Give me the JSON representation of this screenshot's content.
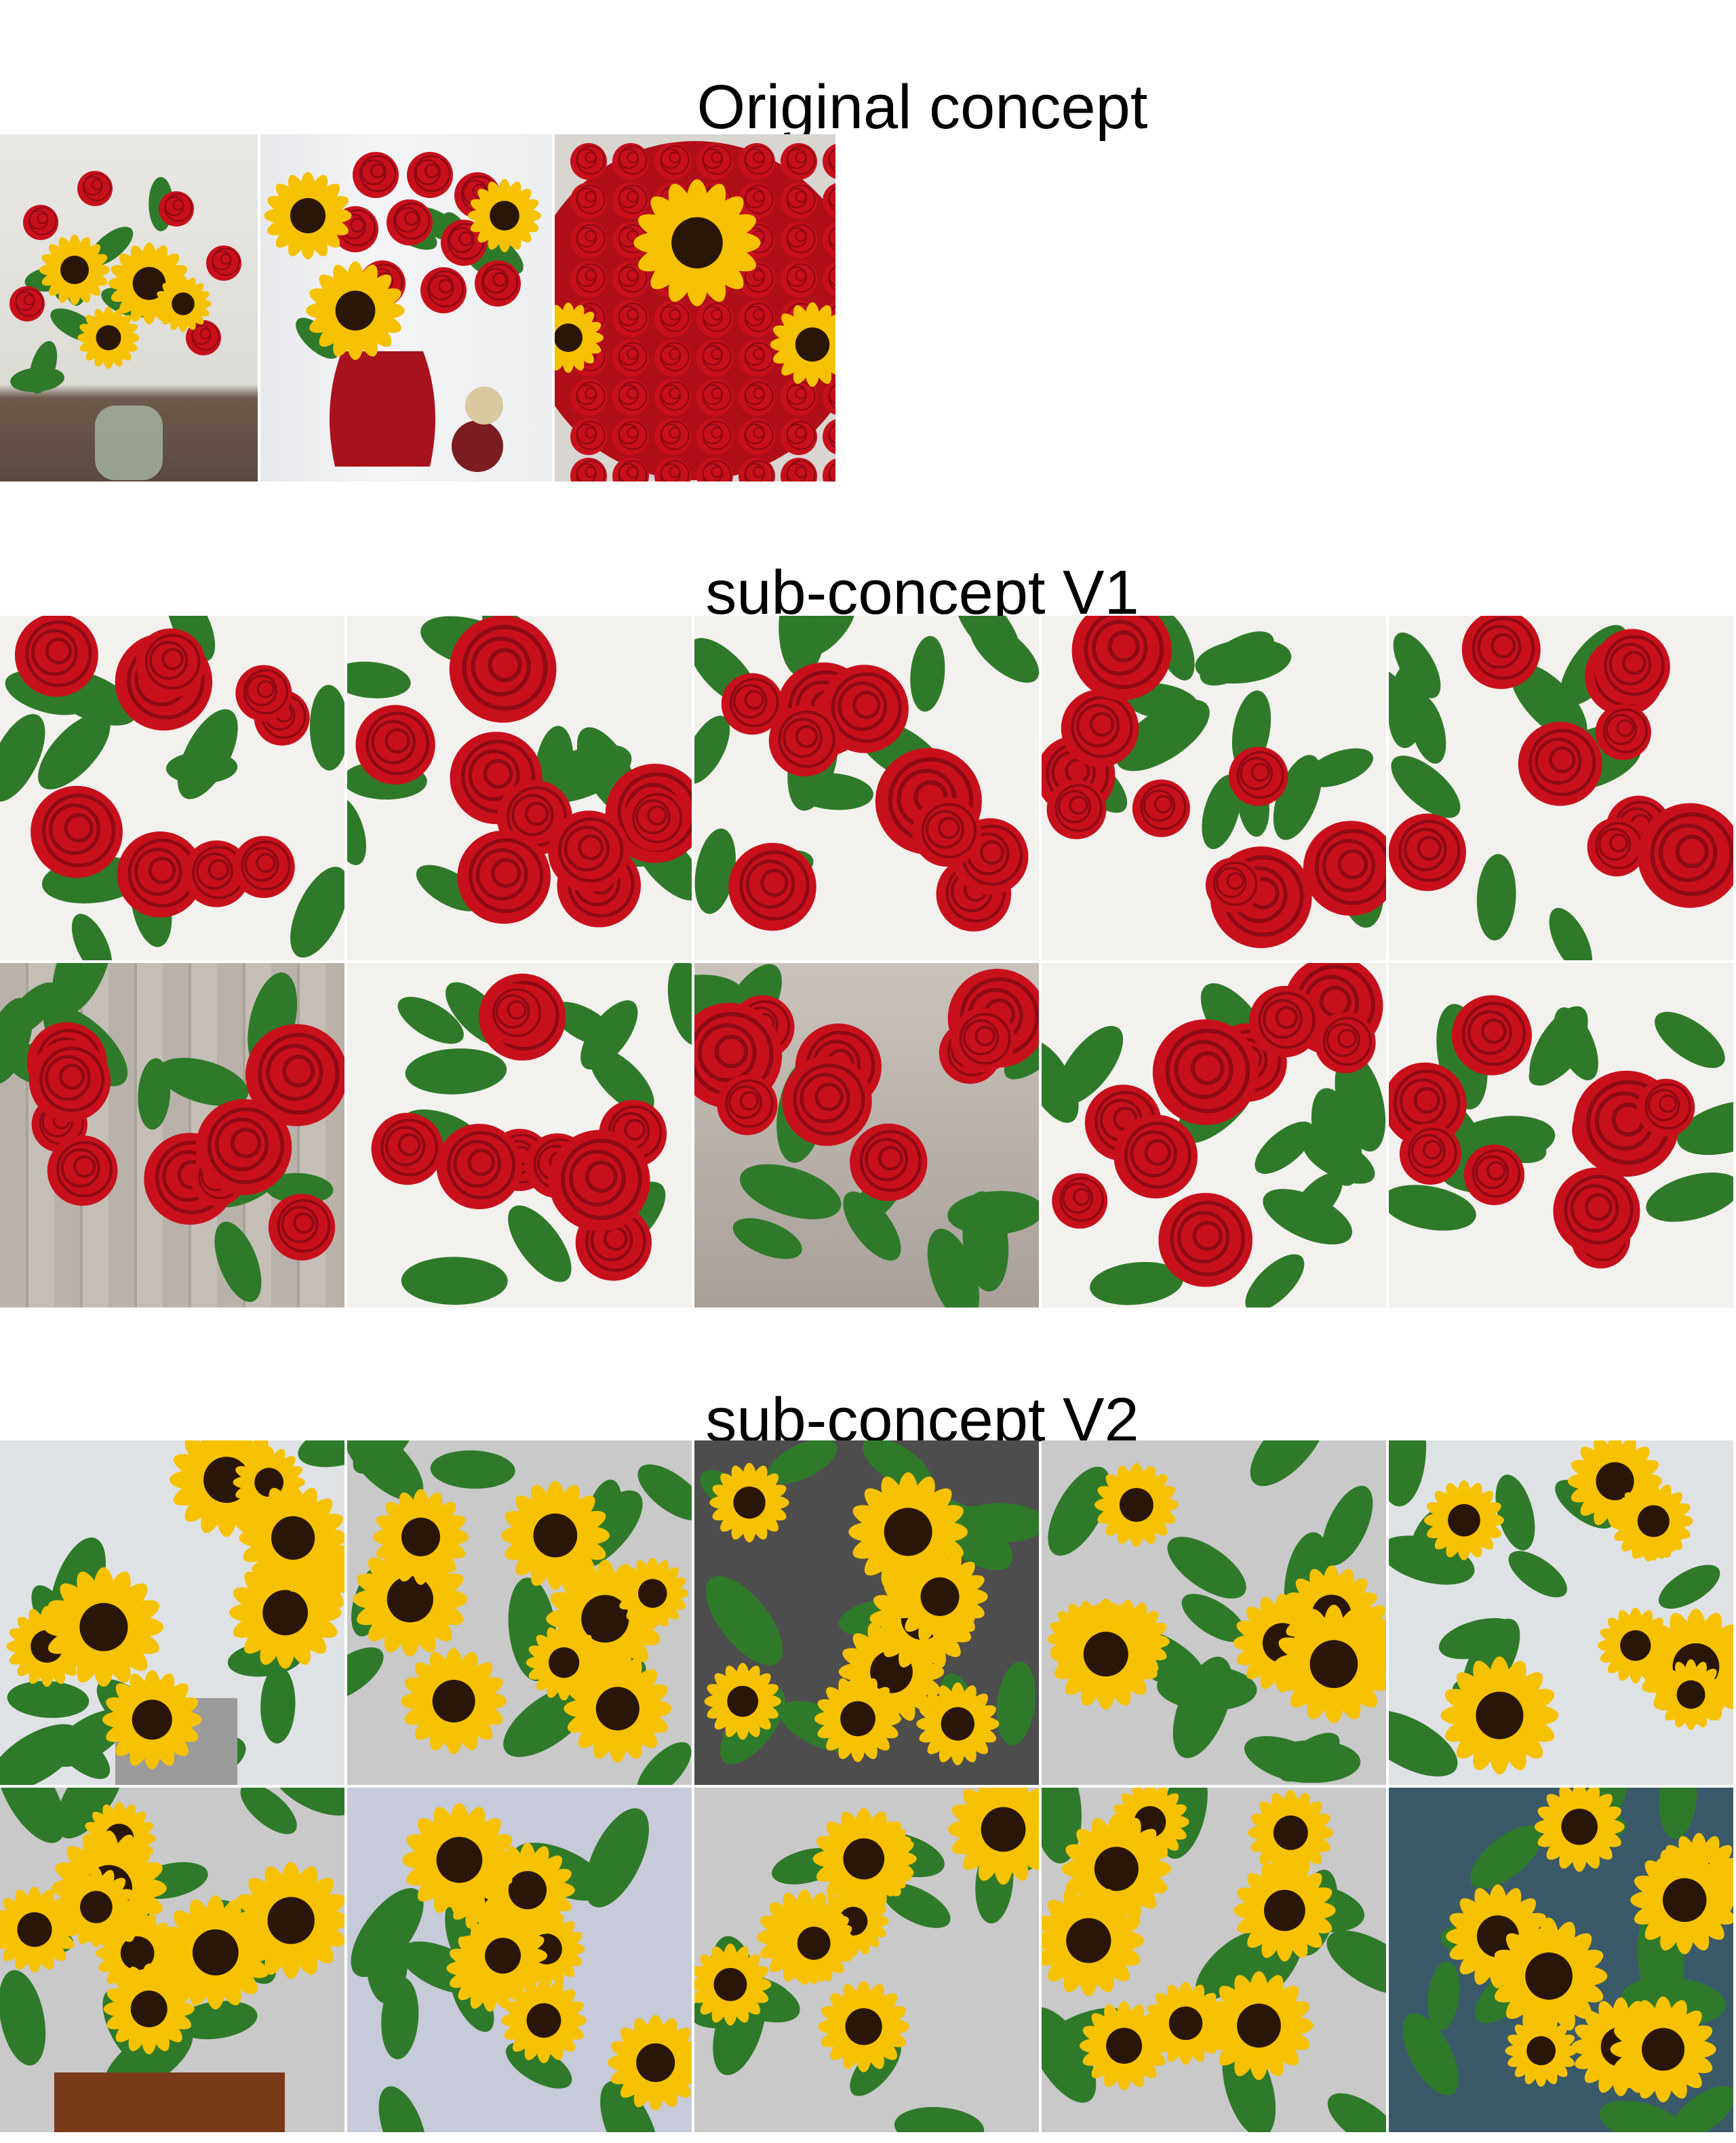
{
  "sections": {
    "original": {
      "title": "Original concept"
    },
    "v1": {
      "title": "sub-concept V1"
    },
    "v2": {
      "title": "sub-concept V2"
    }
  },
  "colors": {
    "rose_red": "#c8101c",
    "rose_dark": "#8e0a14",
    "leaf_green": "#2f7a2a",
    "sun_yellow": "#f6c200",
    "sun_center": "#2a1608",
    "vase_red": "#a8121c"
  }
}
